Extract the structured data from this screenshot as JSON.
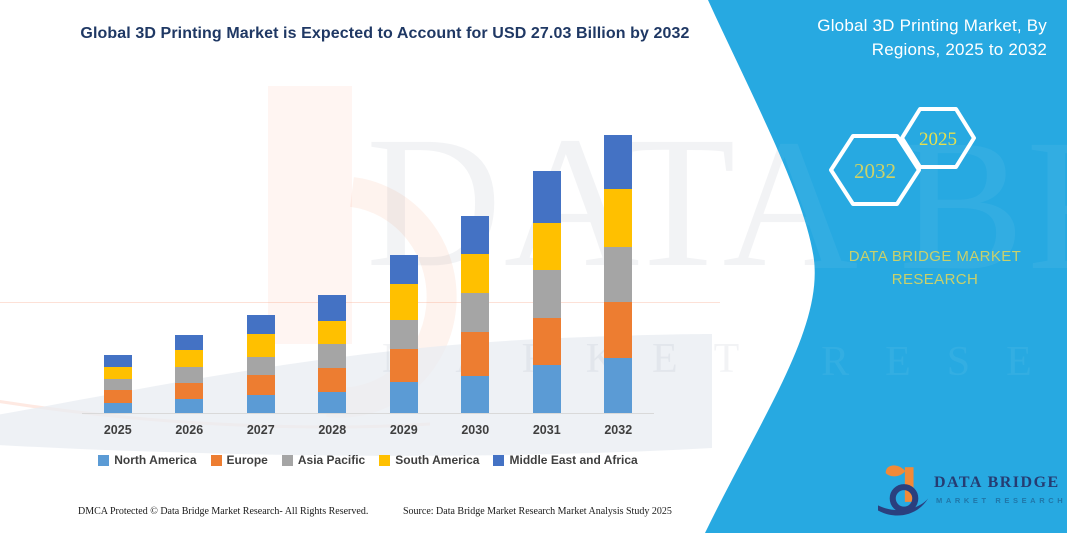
{
  "main": {
    "title": "Global 3D Printing Market is Expected to Account for USD 27.03 Billion by 2032"
  },
  "watermarks": {
    "brand": "DATA BRIDGE",
    "sub": "MARKET RESEARCH"
  },
  "chart_data": {
    "type": "bar",
    "stacked": true,
    "title": "Global 3D Printing Market is Expected to Account for USD 27.03 Billion by 2032",
    "unit": "USD Billion",
    "categories": [
      "2025",
      "2026",
      "2027",
      "2028",
      "2029",
      "2030",
      "2031",
      "2032"
    ],
    "series": [
      {
        "name": "North America",
        "color": "#5B9BD5",
        "values": [
          1.0,
          1.4,
          1.75,
          2.05,
          3.0,
          3.65,
          4.65,
          5.35
        ]
      },
      {
        "name": "Europe",
        "color": "#ED7D31",
        "values": [
          1.25,
          1.5,
          1.95,
          2.35,
          3.25,
          4.25,
          4.6,
          5.45
        ]
      },
      {
        "name": "Asia Pacific",
        "color": "#A5A5A5",
        "values": [
          1.05,
          1.6,
          1.8,
          2.35,
          2.85,
          3.75,
          4.65,
          5.4
        ]
      },
      {
        "name": "South America",
        "color": "#FFC000",
        "values": [
          1.2,
          1.6,
          2.2,
          2.2,
          3.45,
          3.85,
          4.55,
          5.6
        ]
      },
      {
        "name": "Middle East and Africa",
        "color": "#4472C4",
        "values": [
          1.2,
          1.5,
          1.8,
          2.55,
          2.85,
          3.7,
          5.05,
          5.23
        ]
      }
    ],
    "totals": [
      5.7,
      7.6,
      9.5,
      11.5,
      15.4,
      19.2,
      23.5,
      27.03
    ],
    "ylim": [
      0,
      28
    ],
    "y_axis_visible": false,
    "gridlines": false,
    "legend_position": "bottom"
  },
  "panel": {
    "title": "Global 3D Printing Market, By Regions, 2025 to 2032",
    "hexagons": [
      {
        "label": "2032",
        "text_color": "#CDD266"
      },
      {
        "label": "2025",
        "text_color": "#E6E04E"
      }
    ],
    "brand_caption": "DATA BRIDGE MARKET RESEARCH",
    "accent_color": "#27A9E1"
  },
  "logo": {
    "name": "DATA BRIDGE",
    "subtitle": "MARKET RESEARCH"
  },
  "footer": {
    "left": "DMCA Protected © Data Bridge Market Research-  All Rights Reserved.",
    "right": "Source: Data Bridge Market Research  Market Analysis Study 2025"
  }
}
